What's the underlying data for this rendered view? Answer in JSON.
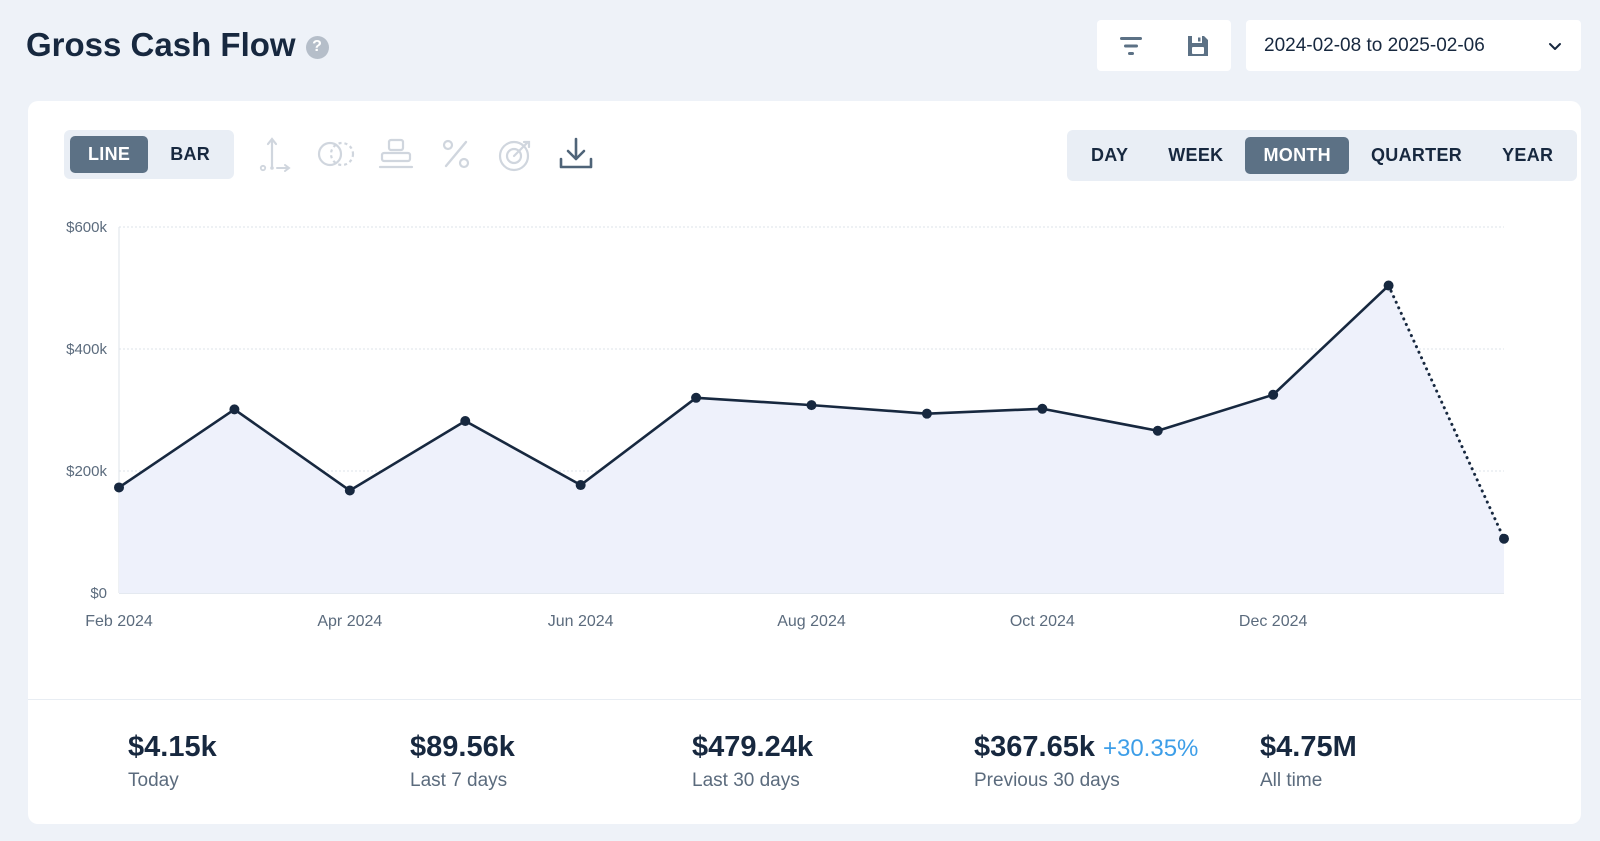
{
  "header": {
    "title": "Gross Cash Flow",
    "help_symbol": "?",
    "date_range": "2024-02-08 to 2025-02-06"
  },
  "chart_type_toggle": [
    {
      "label": "LINE",
      "active": true
    },
    {
      "label": "BAR",
      "active": false
    }
  ],
  "toolbar_icons": [
    "axis-icon",
    "compare-circles-icon",
    "stack-icon",
    "percent-icon",
    "target-icon",
    "download-icon"
  ],
  "period_toggle": [
    {
      "label": "DAY",
      "active": false
    },
    {
      "label": "WEEK",
      "active": false
    },
    {
      "label": "MONTH",
      "active": true
    },
    {
      "label": "QUARTER",
      "active": false
    },
    {
      "label": "YEAR",
      "active": false
    }
  ],
  "chart_data": {
    "type": "line",
    "x": [
      "2024-02",
      "2024-03",
      "2024-04",
      "2024-05",
      "2024-06",
      "2024-07",
      "2024-08",
      "2024-09",
      "2024-10",
      "2024-11",
      "2024-12",
      "2025-01",
      "2025-02"
    ],
    "values": [
      173000,
      301000,
      168000,
      282000,
      177000,
      320000,
      308000,
      294000,
      302000,
      266000,
      325000,
      504000,
      89000
    ],
    "partial_last_point": true,
    "x_tick_labels": [
      "Feb 2024",
      "Apr 2024",
      "Jun 2024",
      "Aug 2024",
      "Oct 2024",
      "Dec 2024"
    ],
    "y_tick_labels": [
      "$0",
      "$200k",
      "$400k",
      "$600k"
    ],
    "y_ticks": [
      0,
      200000,
      400000,
      600000
    ],
    "ylim": [
      0,
      600000
    ],
    "grid": true,
    "line_color": "#17283f",
    "fill_color": "#eef1fb"
  },
  "stats": [
    {
      "value": "$4.15k",
      "label": "Today"
    },
    {
      "value": "$89.56k",
      "label": "Last 7 days"
    },
    {
      "value": "$479.24k",
      "label": "Last 30 days"
    },
    {
      "value": "$367.65k",
      "change": "+30.35%",
      "label": "Previous 30 days"
    },
    {
      "value": "$4.75M",
      "label": "All time"
    }
  ],
  "colors": {
    "background": "#eef2f8",
    "accent": "#5c7185",
    "positive_change": "#3d9ee8"
  }
}
